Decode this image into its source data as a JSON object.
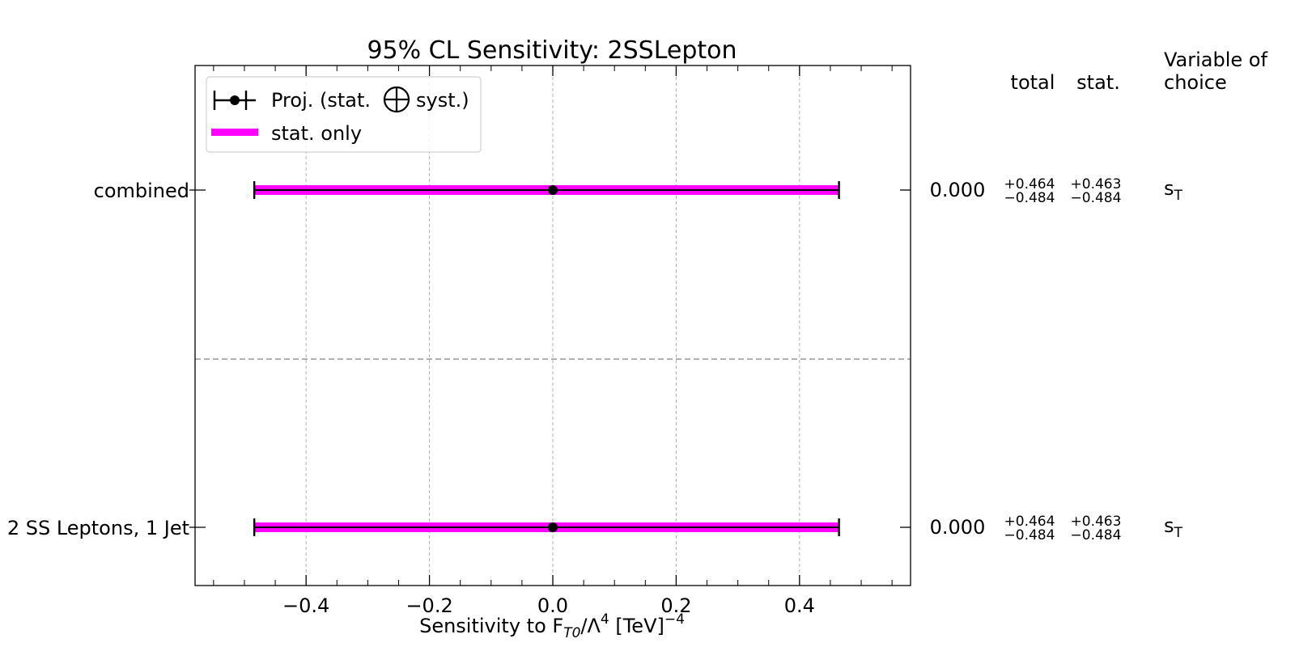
{
  "chart_data": {
    "type": "errorbar",
    "title": "95% CL Sensitivity: 2SSLepton",
    "xlabel": {
      "prefix": "Sensitivity to F",
      "sub": "T0",
      "mid": "/Λ",
      "sup1": "4",
      "unit": " [TeV]",
      "sup2": "−4"
    },
    "xlim": [
      -0.58,
      0.58
    ],
    "xticks": [
      -0.4,
      -0.2,
      0.0,
      0.2,
      0.4
    ],
    "xtick_labels": [
      "−0.4",
      "−0.2",
      "0.0",
      "0.2",
      "0.4"
    ],
    "grid": true,
    "legend": {
      "position": "top-left",
      "entries": [
        {
          "label_main": "Proj. (stat.",
          "label_tail": "syst.)",
          "style": "errorbar",
          "color": "#000000"
        },
        {
          "label": "stat. only",
          "style": "band",
          "color": "#ff00ff"
        }
      ]
    },
    "table_headers": {
      "total": "total",
      "stat": "stat.",
      "variable": "Variable of choice"
    },
    "rows": [
      {
        "label": "combined",
        "central": 0.0,
        "central_text": "0.000",
        "total_up": 0.464,
        "total_down": 0.484,
        "stat_up": 0.463,
        "stat_down": 0.484,
        "total_up_text": "+0.464",
        "total_down_text": "−0.484",
        "stat_up_text": "+0.463",
        "stat_down_text": "−0.484",
        "variable": "s",
        "variable_sub": "T"
      },
      {
        "label": "2 SS Leptons, 1 Jet",
        "central": 0.0,
        "central_text": "0.000",
        "total_up": 0.464,
        "total_down": 0.484,
        "stat_up": 0.463,
        "stat_down": 0.484,
        "total_up_text": "+0.464",
        "total_down_text": "−0.484",
        "stat_up_text": "+0.463",
        "stat_down_text": "−0.484",
        "variable": "s",
        "variable_sub": "T"
      }
    ],
    "colors": {
      "stat_band": "#ff00ff",
      "total": "#000000",
      "grid": "#b0b0b0",
      "separator": "#999999"
    }
  }
}
